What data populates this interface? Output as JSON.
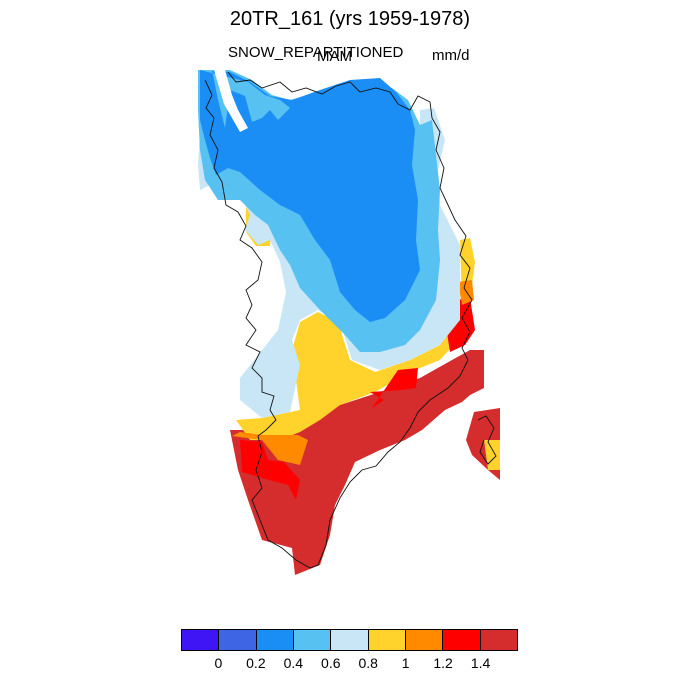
{
  "header": {
    "title": "20TR_161 (yrs 1959-1978)",
    "variable": "SNOW_REPARTITIONED",
    "season": "MAM",
    "units": "mm/d"
  },
  "colorbar": {
    "colors": [
      "#3F14F5",
      "#3E65E4",
      "#1B8EF6",
      "#57C1F2",
      "#C9E6F6",
      "#FFD22C",
      "#FF8A00",
      "#FF0000",
      "#D52D2D"
    ],
    "labels": [
      "0",
      "0.2",
      "0.4",
      "0.6",
      "0.8",
      "1",
      "1.2",
      "1.4"
    ]
  },
  "map": {
    "region": "Greenland",
    "palette": {
      "blue": "#1B8EF6",
      "light_blue": "#57C1F2",
      "pale_blue": "#C9E6F6",
      "yellow": "#FFD22C",
      "orange": "#FF8A00",
      "red": "#FF0000",
      "dark_red": "#D52D2D"
    }
  }
}
